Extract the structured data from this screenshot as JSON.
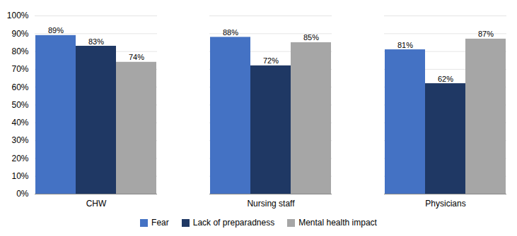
{
  "chart_data": {
    "type": "bar",
    "categories": [
      "CHW",
      "Nursing staff",
      "Physicians"
    ],
    "series": [
      {
        "name": "Fear",
        "color": "#4472C4",
        "values": [
          89,
          88,
          81
        ],
        "value_labels": [
          "89%",
          "88%",
          "81%"
        ]
      },
      {
        "name": "Lack of preparadness",
        "color": "#1F3864",
        "values": [
          83,
          72,
          62
        ],
        "value_labels": [
          "83%",
          "72%",
          "62%"
        ]
      },
      {
        "name": "Mental health impact",
        "color": "#A6A6A6",
        "values": [
          74,
          85,
          87
        ],
        "value_labels": [
          "74%",
          "85%",
          "87%"
        ]
      }
    ],
    "ylim": [
      0,
      100
    ],
    "yticks": [
      {
        "value": 0,
        "label": "0%"
      },
      {
        "value": 10,
        "label": "10%"
      },
      {
        "value": 20,
        "label": "20%"
      },
      {
        "value": 30,
        "label": "30%"
      },
      {
        "value": 40,
        "label": "40%"
      },
      {
        "value": 50,
        "label": "50%"
      },
      {
        "value": 60,
        "label": "60%"
      },
      {
        "value": 70,
        "label": "70%"
      },
      {
        "value": 80,
        "label": "80%"
      },
      {
        "value": 90,
        "label": "90%"
      },
      {
        "value": 100,
        "label": "100%"
      }
    ],
    "grid": true,
    "legend": "bottom",
    "data_labels": true
  }
}
